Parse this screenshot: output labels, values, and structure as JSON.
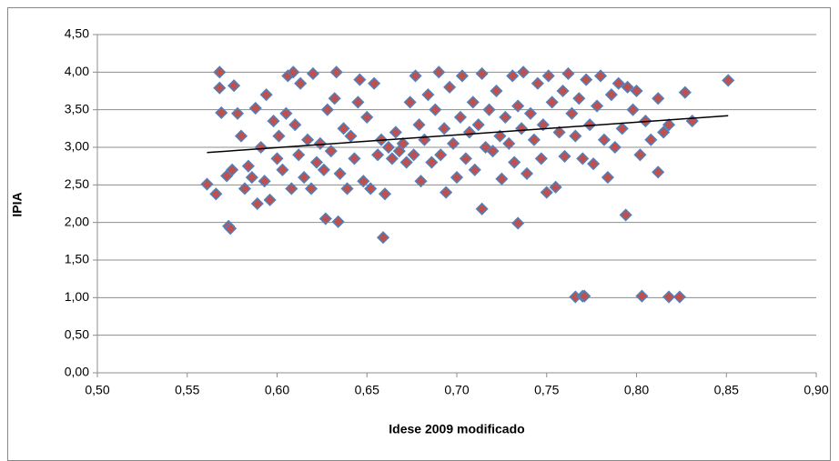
{
  "chart_data": {
    "type": "scatter",
    "x_label": "Idese 2009 modificado",
    "y_label": "IPIA",
    "color": "#c0504d",
    "edge_color": "#4f81bd",
    "grid": true,
    "xlim": [
      0.5,
      0.9
    ],
    "ylim": [
      0,
      4.5
    ],
    "xticks": [
      {
        "value": 0.5,
        "label": "0,50"
      },
      {
        "value": 0.55,
        "label": "0,55"
      },
      {
        "value": 0.6,
        "label": "0,60"
      },
      {
        "value": 0.65,
        "label": "0,65"
      },
      {
        "value": 0.7,
        "label": "0,70"
      },
      {
        "value": 0.75,
        "label": "0,75"
      },
      {
        "value": 0.8,
        "label": "0,80"
      },
      {
        "value": 0.85,
        "label": "0,85"
      },
      {
        "value": 0.9,
        "label": "0,90"
      }
    ],
    "yticks": [
      {
        "value": 0,
        "label": "0,00"
      },
      {
        "value": 0.5,
        "label": "0,50"
      },
      {
        "value": 1,
        "label": "1,00"
      },
      {
        "value": 1.5,
        "label": "1,50"
      },
      {
        "value": 2,
        "label": "2,00"
      },
      {
        "value": 2.5,
        "label": "2,50"
      },
      {
        "value": 3,
        "label": "3,00"
      },
      {
        "value": 3.5,
        "label": "3,50"
      },
      {
        "value": 4,
        "label": "4,00"
      },
      {
        "value": 4.5,
        "label": "4,50"
      }
    ],
    "trendline": {
      "color": "#000000",
      "x": [
        0.561,
        0.851
      ],
      "y": [
        2.93,
        3.42
      ]
    },
    "x": [
      0.572,
      0.575,
      0.578,
      0.58,
      0.582,
      0.584,
      0.586,
      0.588,
      0.589,
      0.591,
      0.593,
      0.594,
      0.596,
      0.598,
      0.6,
      0.601,
      0.603,
      0.605,
      0.606,
      0.608,
      0.609,
      0.61,
      0.612,
      0.613,
      0.615,
      0.617,
      0.619,
      0.62,
      0.622,
      0.624,
      0.626,
      0.628,
      0.63,
      0.632,
      0.633,
      0.635,
      0.637,
      0.639,
      0.641,
      0.643,
      0.645,
      0.646,
      0.648,
      0.65,
      0.652,
      0.654,
      0.656,
      0.658,
      0.66,
      0.662,
      0.664,
      0.666,
      0.668,
      0.67,
      0.672,
      0.674,
      0.676,
      0.677,
      0.679,
      0.68,
      0.682,
      0.684,
      0.686,
      0.688,
      0.69,
      0.691,
      0.693,
      0.694,
      0.696,
      0.698,
      0.7,
      0.702,
      0.703,
      0.705,
      0.707,
      0.709,
      0.71,
      0.712,
      0.714,
      0.716,
      0.718,
      0.72,
      0.722,
      0.724,
      0.725,
      0.727,
      0.729,
      0.731,
      0.732,
      0.734,
      0.736,
      0.737,
      0.739,
      0.741,
      0.743,
      0.745,
      0.747,
      0.748,
      0.75,
      0.751,
      0.753,
      0.755,
      0.757,
      0.759,
      0.76,
      0.762,
      0.764,
      0.766,
      0.768,
      0.77,
      0.772,
      0.774,
      0.776,
      0.778,
      0.78,
      0.782,
      0.784,
      0.786,
      0.788,
      0.79,
      0.792,
      0.795,
      0.798,
      0.8,
      0.802,
      0.805,
      0.808,
      0.815,
      0.818,
      0.573,
      0.574,
      0.659,
      0.627,
      0.634,
      0.734,
      0.714,
      0.794,
      0.766,
      0.77,
      0.771,
      0.803,
      0.818,
      0.824,
      0.851,
      0.831,
      0.827,
      0.812,
      0.812,
      0.566,
      0.561,
      0.568,
      0.568,
      0.576,
      0.569
    ],
    "values": [
      2.62,
      2.7,
      3.45,
      3.15,
      2.45,
      2.75,
      2.6,
      3.52,
      2.25,
      3.0,
      2.55,
      3.7,
      2.3,
      3.35,
      2.85,
      3.15,
      2.7,
      3.45,
      3.95,
      2.45,
      4.0,
      3.3,
      2.9,
      3.85,
      2.6,
      3.1,
      2.45,
      3.98,
      2.8,
      3.05,
      2.7,
      3.5,
      2.95,
      3.65,
      4.0,
      2.65,
      3.25,
      2.45,
      3.15,
      2.85,
      3.6,
      3.9,
      2.55,
      3.4,
      2.45,
      3.85,
      2.9,
      3.1,
      2.38,
      3.0,
      2.85,
      3.2,
      2.95,
      3.05,
      2.8,
      3.6,
      2.9,
      3.95,
      3.3,
      2.55,
      3.1,
      3.7,
      2.8,
      3.5,
      4.0,
      2.9,
      3.25,
      2.4,
      3.8,
      3.05,
      2.6,
      3.4,
      3.95,
      2.85,
      3.2,
      3.6,
      2.7,
      3.3,
      3.98,
      3.0,
      3.5,
      2.95,
      3.75,
      3.15,
      2.58,
      3.4,
      3.05,
      3.95,
      2.8,
      3.55,
      3.25,
      4.0,
      2.65,
      3.45,
      3.1,
      3.85,
      2.85,
      3.3,
      2.4,
      3.95,
      3.6,
      2.47,
      3.2,
      3.75,
      2.88,
      3.98,
      3.45,
      3.15,
      3.65,
      2.85,
      3.9,
      3.3,
      2.78,
      3.55,
      3.95,
      3.1,
      2.6,
      3.7,
      3.0,
      3.85,
      3.25,
      3.8,
      3.5,
      3.75,
      2.9,
      3.35,
      3.1,
      3.2,
      3.3,
      1.95,
      1.92,
      1.8,
      2.05,
      2.01,
      1.99,
      2.18,
      2.1,
      1.01,
      1.02,
      1.02,
      1.02,
      1.01,
      1.01,
      3.89,
      3.35,
      3.73,
      2.67,
      3.65,
      2.38,
      2.51,
      4.0,
      3.79,
      3.82,
      3.46
    ]
  }
}
